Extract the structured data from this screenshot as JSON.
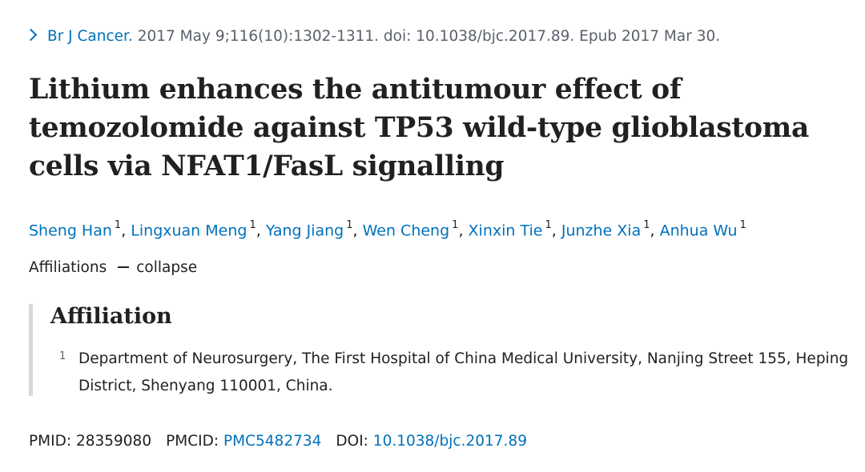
{
  "citation": {
    "journal": "Br J Cancer.",
    "details": " 2017 May 9;116(10):1302-1311. doi: 10.1038/bjc.2017.89. Epub 2017 Mar 30."
  },
  "title": "Lithium enhances the antitumour effect of temozolomide against TP53 wild-type glioblastoma cells via NFAT1/FasL signalling",
  "authors": [
    {
      "name": "Sheng Han",
      "sup": "1"
    },
    {
      "name": "Lingxuan Meng",
      "sup": "1"
    },
    {
      "name": "Yang Jiang",
      "sup": "1"
    },
    {
      "name": "Wen Cheng",
      "sup": "1"
    },
    {
      "name": "Xinxin Tie",
      "sup": "1"
    },
    {
      "name": "Junzhe Xia",
      "sup": "1"
    },
    {
      "name": "Anhua Wu",
      "sup": "1"
    }
  ],
  "author_separator": ", ",
  "affiliations_toggle": {
    "label": "Affiliations",
    "action": "collapse"
  },
  "affiliation": {
    "heading": "Affiliation",
    "number": "1",
    "text": "Department of Neurosurgery, The First Hospital of China Medical University, Nanjing Street 155, Heping District, Shenyang 110001, China."
  },
  "identifiers": {
    "pmid_label": "PMID: ",
    "pmid": "28359080",
    "pmcid_label": "PMCID: ",
    "pmcid": "PMC5482734",
    "doi_label": "DOI: ",
    "doi": "10.1038/bjc.2017.89"
  },
  "colors": {
    "link": "#0071bc",
    "text": "#212121",
    "muted": "#5b616b",
    "rule": "#d6d7d9"
  }
}
